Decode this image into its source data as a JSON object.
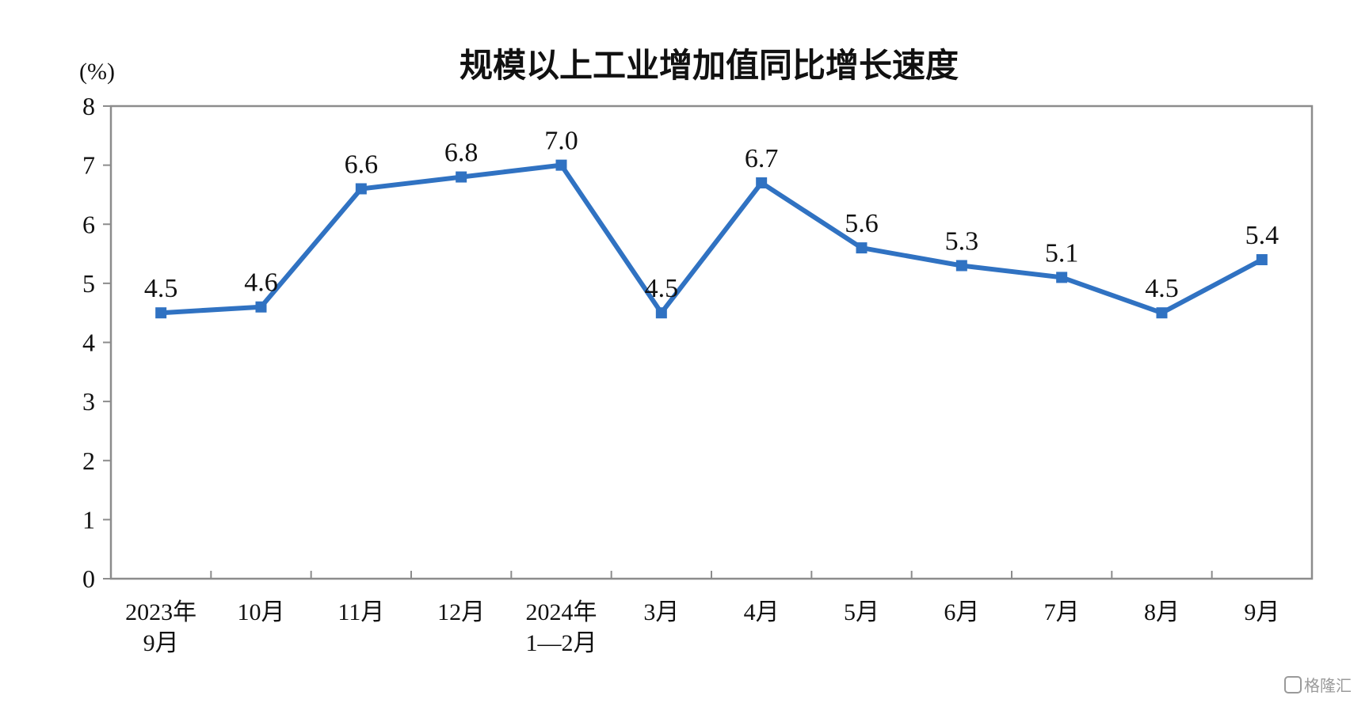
{
  "chart_data": {
    "type": "line",
    "title": "规模以上工业增加值同比增长速度",
    "yunit": "(%)",
    "categories": [
      [
        "2023年",
        "9月"
      ],
      [
        "10月"
      ],
      [
        "11月"
      ],
      [
        "12月"
      ],
      [
        "2024年",
        "1—2月"
      ],
      [
        "3月"
      ],
      [
        "4月"
      ],
      [
        "5月"
      ],
      [
        "6月"
      ],
      [
        "7月"
      ],
      [
        "8月"
      ],
      [
        "9月"
      ]
    ],
    "values": [
      4.5,
      4.6,
      6.6,
      6.8,
      7.0,
      4.5,
      6.7,
      5.6,
      5.3,
      5.1,
      4.5,
      5.4
    ],
    "labels": [
      "4.5",
      "4.6",
      "6.6",
      "6.8",
      "7.0",
      "4.5",
      "6.7",
      "5.6",
      "5.3",
      "5.1",
      "4.5",
      "5.4"
    ],
    "ylim": [
      0,
      8
    ],
    "yticks": [
      0,
      1,
      2,
      3,
      4,
      5,
      6,
      7,
      8
    ],
    "grid": false,
    "legend": "none",
    "series_color": "#3072c2"
  },
  "watermark": {
    "icon": "gelonghui-logo-icon",
    "text": "格隆汇"
  }
}
